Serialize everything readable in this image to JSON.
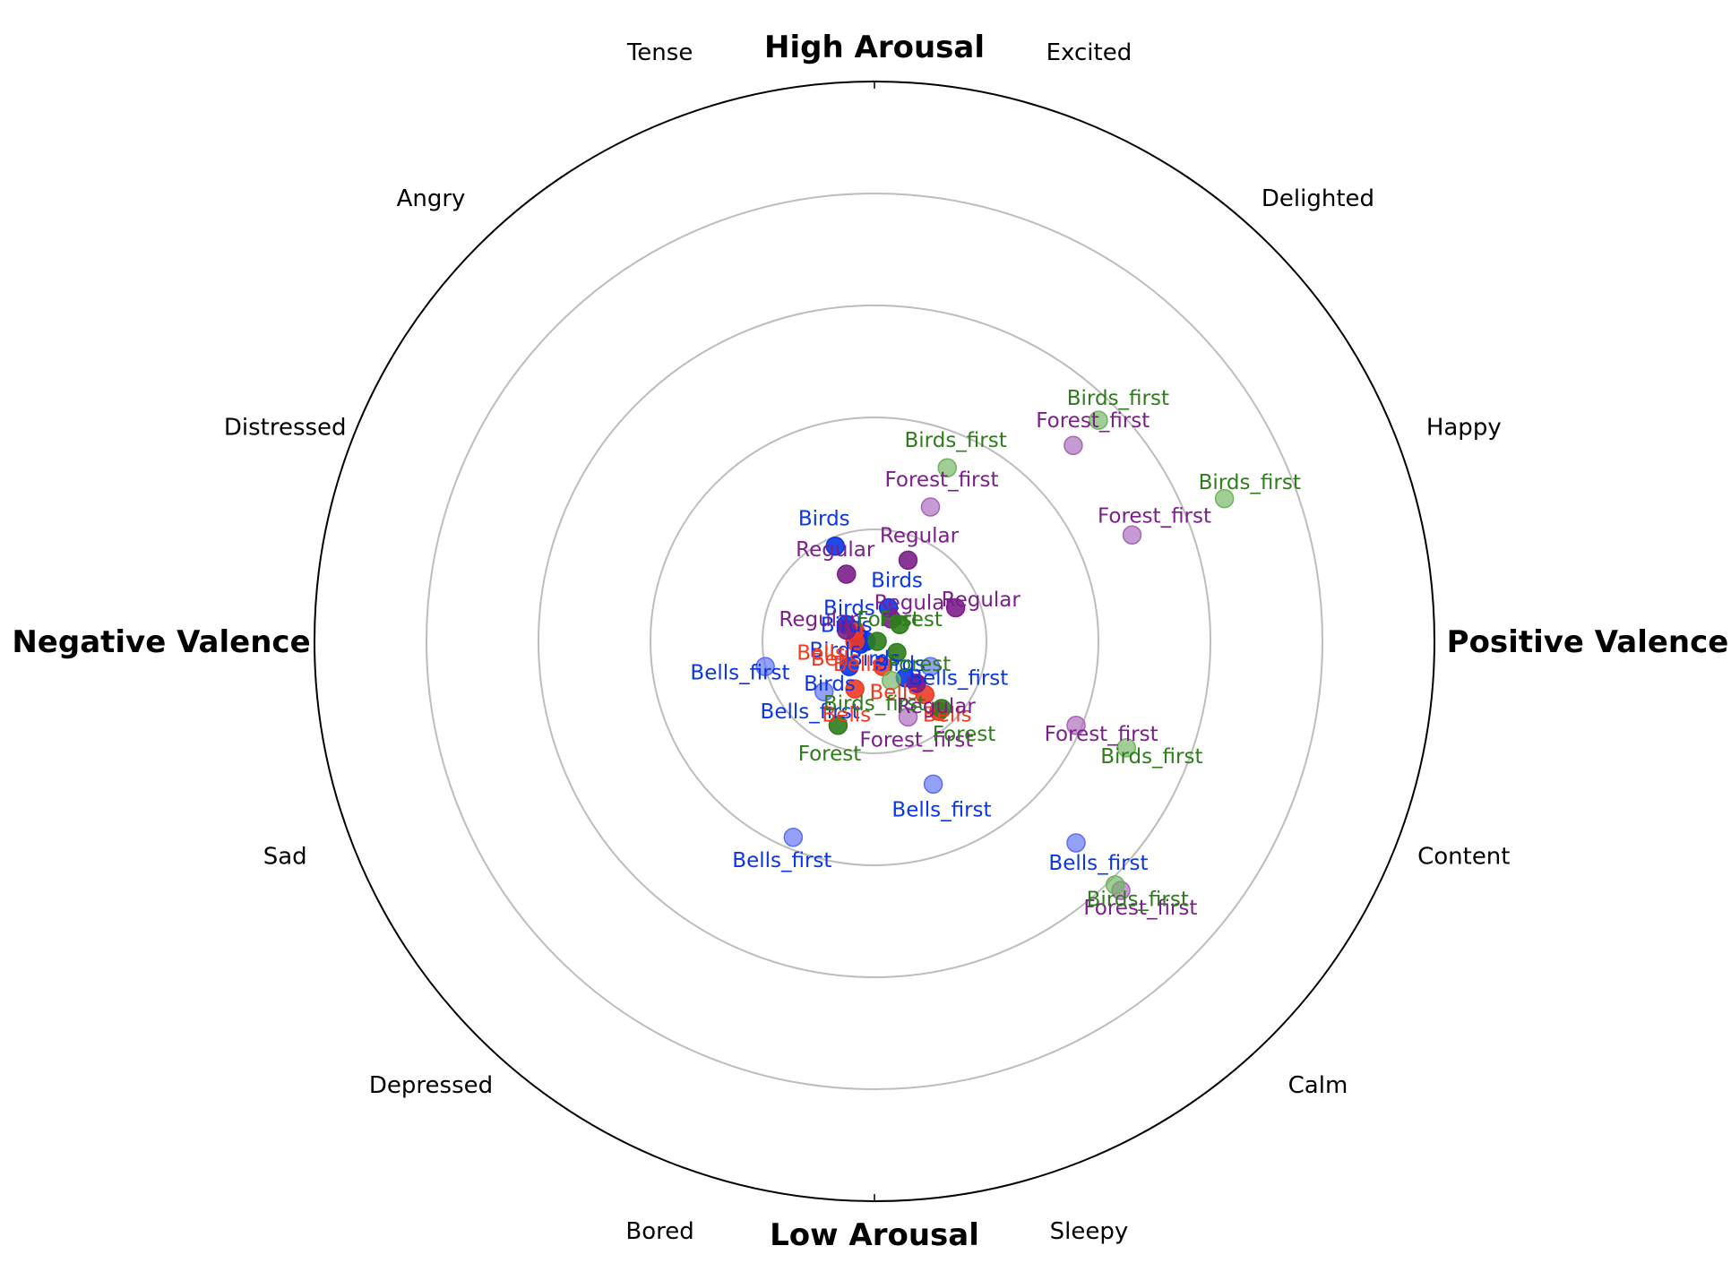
{
  "chart_data": {
    "type": "scatter",
    "subtype": "circumplex-polar",
    "title": "",
    "x_range": [
      -1,
      1
    ],
    "y_range": [
      -1,
      1
    ],
    "rings": [
      0.2,
      0.4,
      0.6,
      0.8
    ],
    "axis_labels": {
      "top": "High Arousal",
      "bottom": "Low Arousal",
      "left": "Negative Valence",
      "right": "Positive Valence"
    },
    "emotion_labels": [
      {
        "text": "Excited",
        "angle": 70
      },
      {
        "text": "Delighted",
        "angle": 45
      },
      {
        "text": "Happy",
        "angle": 20
      },
      {
        "text": "Content",
        "angle": -20
      },
      {
        "text": "Calm",
        "angle": -45
      },
      {
        "text": "Sleepy",
        "angle": -70
      },
      {
        "text": "Bored",
        "angle": -110
      },
      {
        "text": "Depressed",
        "angle": -135
      },
      {
        "text": "Sad",
        "angle": -160
      },
      {
        "text": "Distressed",
        "angle": 160
      },
      {
        "text": "Angry",
        "angle": 135
      },
      {
        "text": "Tense",
        "angle": 110
      }
    ],
    "series": [
      {
        "name": "Birds",
        "color": "#0a35e8",
        "label_color": "#0a35e8",
        "opacity": 0.9,
        "points": [
          {
            "x": -0.07,
            "y": 0.17,
            "label": "Birds",
            "lx": -0.09,
            "ly": 0.22
          },
          {
            "x": 0.025,
            "y": 0.06,
            "label": "Birds",
            "lx": 0.04,
            "ly": 0.11
          },
          {
            "x": -0.03,
            "y": 0.01,
            "label": "Birds",
            "lx": -0.05,
            "ly": 0.03
          },
          {
            "x": -0.025,
            "y": -0.005,
            "label": "Birds",
            "lx": -0.07,
            "ly": -0.015
          },
          {
            "x": -0.045,
            "y": -0.045,
            "label": "Birds",
            "lx": -0.08,
            "ly": -0.075
          },
          {
            "x": -0.05,
            "y": 0.03,
            "label": "Birds",
            "lx": -0.045,
            "ly": 0.06
          },
          {
            "x": -0.015,
            "y": -0.0,
            "label": "Birds",
            "lx": 0.0,
            "ly": -0.03
          },
          {
            "x": 0.075,
            "y": -0.075,
            "label": "Birds",
            "lx": 0.045,
            "ly": -0.04
          },
          {
            "x": 0.055,
            "y": -0.065,
            "label": "",
            "lx": 0,
            "ly": 0
          }
        ]
      },
      {
        "name": "Bells_first",
        "color": "#5b6ef5",
        "label_color": "#0a35e8",
        "opacity": 0.65,
        "points": [
          {
            "x": -0.195,
            "y": -0.045,
            "label": "Bells_first",
            "lx": -0.24,
            "ly": -0.055
          },
          {
            "x": -0.09,
            "y": -0.09,
            "label": "Bells_first",
            "lx": -0.115,
            "ly": -0.125
          },
          {
            "x": 0.105,
            "y": -0.255,
            "label": "Bells_first",
            "lx": 0.12,
            "ly": -0.3
          },
          {
            "x": -0.145,
            "y": -0.35,
            "label": "Bells_first",
            "lx": -0.165,
            "ly": -0.39
          },
          {
            "x": 0.36,
            "y": -0.36,
            "label": "Bells_first",
            "lx": 0.4,
            "ly": -0.395
          },
          {
            "x": 0.1,
            "y": -0.045,
            "label": "Bells_first",
            "lx": 0.15,
            "ly": -0.065
          }
        ]
      },
      {
        "name": "Bells",
        "color": "#f03a22",
        "label_color": "#f03a22",
        "opacity": 0.9,
        "points": [
          {
            "x": -0.035,
            "y": 0.02,
            "label": "Bells",
            "lx": -0.095,
            "ly": -0.02
          },
          {
            "x": 0.015,
            "y": -0.045,
            "label": "Bells",
            "lx": -0.03,
            "ly": -0.04
          },
          {
            "x": -0.035,
            "y": -0.085,
            "label": "Bells",
            "lx": -0.05,
            "ly": -0.13
          },
          {
            "x": 0.09,
            "y": -0.095,
            "label": "Bells",
            "lx": 0.035,
            "ly": -0.09
          },
          {
            "x": 0.115,
            "y": -0.125,
            "label": "Bells",
            "lx": 0.13,
            "ly": -0.13
          },
          {
            "x": -0.035,
            "y": 0.0,
            "label": "Bells",
            "lx": -0.07,
            "ly": -0.03
          }
        ]
      },
      {
        "name": "Regular",
        "color": "#7b1f8a",
        "label_color": "#7b1f8a",
        "opacity": 0.9,
        "points": [
          {
            "x": -0.05,
            "y": 0.12,
            "label": "Regular",
            "lx": -0.07,
            "ly": 0.165
          },
          {
            "x": 0.06,
            "y": 0.145,
            "label": "Regular",
            "lx": 0.08,
            "ly": 0.19
          },
          {
            "x": 0.145,
            "y": 0.06,
            "label": "Regular",
            "lx": 0.19,
            "ly": 0.075
          },
          {
            "x": 0.03,
            "y": 0.04,
            "label": "Regular",
            "lx": 0.07,
            "ly": 0.07
          },
          {
            "x": -0.05,
            "y": 0.02,
            "label": "Regular",
            "lx": -0.1,
            "ly": 0.04
          },
          {
            "x": 0.075,
            "y": -0.075,
            "label": "Regular",
            "lx": 0.11,
            "ly": -0.115
          }
        ]
      },
      {
        "name": "Forest_first",
        "color": "#a866b8",
        "label_color": "#7b1f8a",
        "opacity": 0.65,
        "points": [
          {
            "x": 0.1,
            "y": 0.24,
            "label": "Forest_first",
            "lx": 0.12,
            "ly": 0.29
          },
          {
            "x": 0.355,
            "y": 0.35,
            "label": "Forest_first",
            "lx": 0.39,
            "ly": 0.395
          },
          {
            "x": 0.46,
            "y": 0.19,
            "label": "Forest_first",
            "lx": 0.5,
            "ly": 0.225
          },
          {
            "x": 0.36,
            "y": -0.15,
            "label": "Forest_first",
            "lx": 0.405,
            "ly": -0.165
          },
          {
            "x": 0.44,
            "y": -0.445,
            "label": "Forest_first",
            "lx": 0.475,
            "ly": -0.475
          },
          {
            "x": 0.06,
            "y": -0.135,
            "label": "Forest_first",
            "lx": 0.075,
            "ly": -0.175
          }
        ]
      },
      {
        "name": "Forest",
        "color": "#2e7d1b",
        "label_color": "#2e7d1b",
        "opacity": 0.9,
        "points": [
          {
            "x": 0.045,
            "y": 0.03,
            "label": "Forest",
            "lx": 0.065,
            "ly": 0.04
          },
          {
            "x": 0.005,
            "y": 0.0,
            "label": "Forest",
            "lx": 0.025,
            "ly": 0.04
          },
          {
            "x": 0.04,
            "y": -0.02,
            "label": "Forest",
            "lx": 0.08,
            "ly": -0.04
          },
          {
            "x": 0.12,
            "y": -0.12,
            "label": "Forest",
            "lx": 0.16,
            "ly": -0.165
          },
          {
            "x": -0.065,
            "y": -0.15,
            "label": "Forest",
            "lx": -0.08,
            "ly": -0.2
          }
        ]
      },
      {
        "name": "Birds_first",
        "color": "#6fb45d",
        "label_color": "#2e7d1b",
        "opacity": 0.65,
        "points": [
          {
            "x": 0.13,
            "y": 0.31,
            "label": "Birds_first",
            "lx": 0.145,
            "ly": 0.36
          },
          {
            "x": 0.4,
            "y": 0.395,
            "label": "Birds_first",
            "lx": 0.435,
            "ly": 0.435
          },
          {
            "x": 0.625,
            "y": 0.255,
            "label": "Birds_first",
            "lx": 0.67,
            "ly": 0.285
          },
          {
            "x": 0.45,
            "y": -0.19,
            "label": "Birds_first",
            "lx": 0.495,
            "ly": -0.205
          },
          {
            "x": 0.43,
            "y": -0.435,
            "label": "Birds_first",
            "lx": 0.47,
            "ly": -0.46
          },
          {
            "x": 0.03,
            "y": -0.07,
            "label": "Birds_first",
            "lx": 0.0,
            "ly": -0.11
          }
        ]
      }
    ]
  }
}
